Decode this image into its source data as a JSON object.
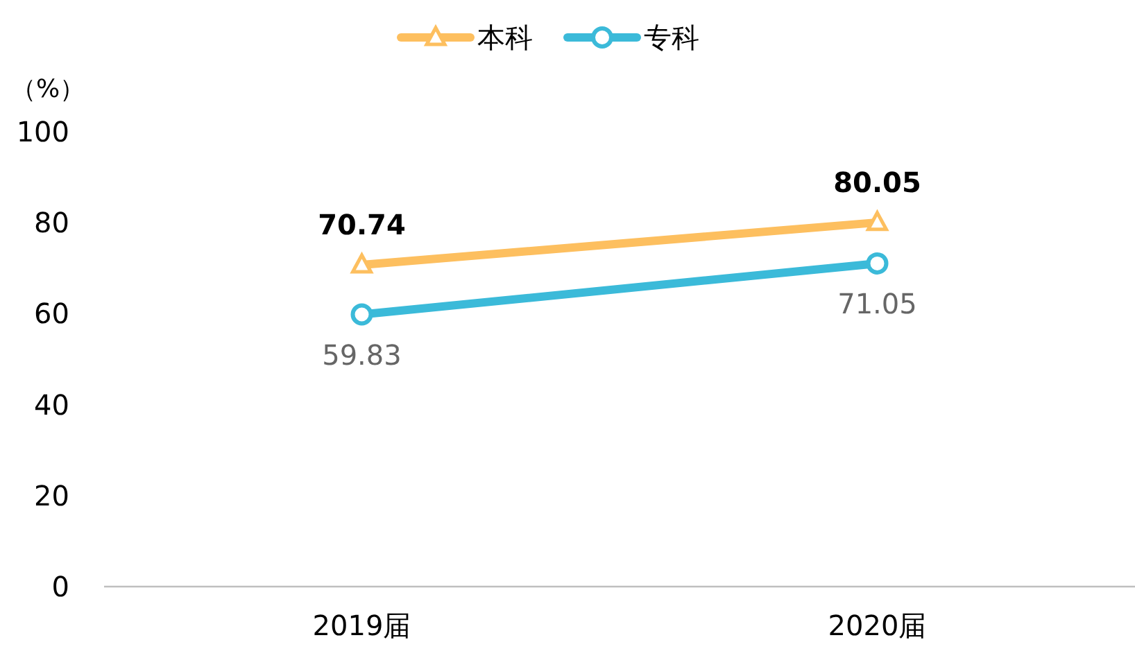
{
  "chart_data": {
    "type": "line",
    "ylabel": "（%）",
    "categories": [
      "2019届",
      "2020届"
    ],
    "series": [
      {
        "name": "本科",
        "color": "#fdbf5f",
        "marker": "triangle",
        "values": [
          70.74,
          80.05
        ]
      },
      {
        "name": "专科",
        "color": "#3bbad9",
        "marker": "circle",
        "values": [
          59.83,
          71.05
        ]
      }
    ],
    "ylim": [
      0,
      100
    ],
    "yticks": [
      0,
      20,
      40,
      60,
      80,
      100
    ],
    "data_labels": true,
    "legend": "top"
  }
}
